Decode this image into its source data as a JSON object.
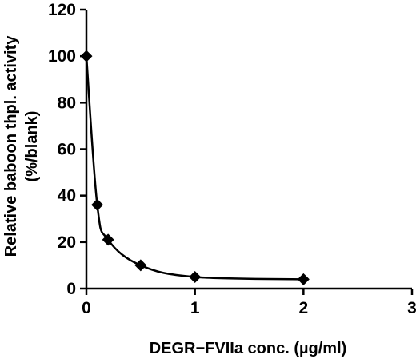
{
  "chart_data": {
    "type": "line",
    "title": "",
    "xlabel": "DEGR−FVIIa conc. (µg/ml)",
    "ylabel_line1": "Relative baboon thpl. activity",
    "ylabel_line2": "(%/blank)",
    "xlim": [
      0,
      3
    ],
    "ylim": [
      0,
      120
    ],
    "xticks": [
      "0",
      "1",
      "2",
      "3"
    ],
    "yticks": [
      "0",
      "20",
      "40",
      "60",
      "80",
      "100",
      "120"
    ],
    "grid": false,
    "legend": "none",
    "marker": "diamond",
    "color": "#000000",
    "series": [
      {
        "x": [
          0,
          0.1,
          0.2,
          0.5,
          1,
          2
        ],
        "y": [
          100,
          36,
          21,
          10,
          5,
          4
        ]
      }
    ]
  }
}
